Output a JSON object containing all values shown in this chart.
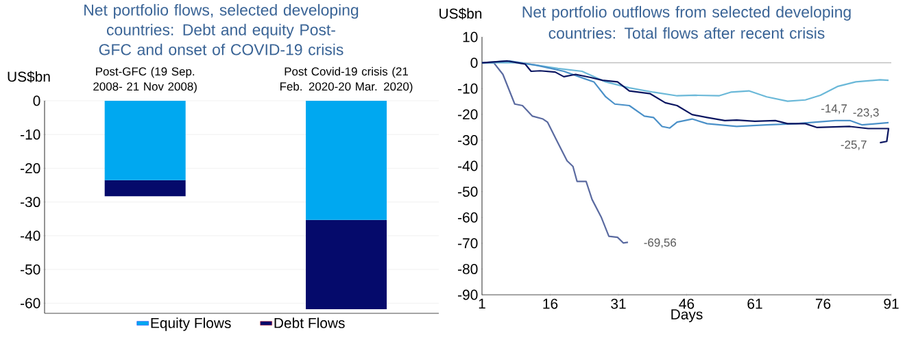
{
  "chart_data": [
    {
      "type": "bar",
      "stacked": true,
      "title": "Net portfolio flows, selected developing countries: Debt and equity Post-GFC and onset of COVID-19 crisis",
      "ylabel": "US$bn",
      "categories": [
        "Post-GFC (19 Sep. 2008- 21 Nov 2008)",
        "Post Covid-19 crisis (21 Feb. 2020-20 Mar. 2020)"
      ],
      "series": [
        {
          "name": "Equity Flows",
          "color": "#00a8f0",
          "values": [
            -23.5,
            -35.3
          ]
        },
        {
          "name": "Debt Flows",
          "color": "#050a6b",
          "values": [
            -4.8,
            -26.5
          ]
        }
      ],
      "ylim": [
        -63,
        0
      ],
      "yticks": [
        -60,
        -50,
        -40,
        -30,
        -20,
        -10,
        0
      ],
      "grid": "y",
      "legend": "bottom"
    },
    {
      "type": "line",
      "title": "Net portfolio outflows from selected developing countries: Total flows after recent crisis",
      "ylabel": "US$bn",
      "xlabel": "Days",
      "series": [
        {
          "color": "#5a6aa0",
          "x": [
            1,
            3.6,
            5.6,
            8.2,
            9.9,
            12.1,
            14.4,
            15.4,
            17.4,
            19.7,
            21,
            21.9,
            23.9,
            25.2,
            27.2,
            28.9,
            30.8,
            32.1,
            33.1
          ],
          "values": [
            0,
            0,
            -4.5,
            -16,
            -16.6,
            -20.7,
            -21.8,
            -23,
            -30,
            -38,
            -40.2,
            -46,
            -46,
            -53,
            -59.8,
            -67.3,
            -67.7,
            -69.9,
            -69.6
          ]
        },
        {
          "color": "#6ab8d8",
          "x": [
            1,
            7.9,
            12.5,
            17.7,
            23,
            28.2,
            33.4,
            38.7,
            43.9,
            47.9,
            53.1,
            55.7,
            59.7,
            63.6,
            68.2,
            72.1,
            75.4,
            79.3,
            83.2,
            88.5,
            90.4
          ],
          "values": [
            0,
            0.1,
            -0.8,
            -2.2,
            -3.3,
            -7.4,
            -9.7,
            -11.4,
            -12.8,
            -12.6,
            -12.8,
            -11.4,
            -10.9,
            -13.2,
            -14.9,
            -14.4,
            -12.6,
            -9.1,
            -7.4,
            -6.6,
            -6.8
          ]
        },
        {
          "color": "#4a90c8",
          "x": [
            1,
            7.2,
            13.1,
            19,
            23.6,
            25.6,
            28.2,
            30.2,
            33.4,
            36.7,
            38.7,
            40.6,
            42.3,
            43.9,
            47.2,
            50.5,
            57,
            63.6,
            70.1,
            78.7,
            81.9,
            84.6,
            90.4
          ],
          "values": [
            0,
            0.7,
            -1,
            -3.3,
            -6.2,
            -7.4,
            -13.2,
            -16,
            -16.6,
            -20.7,
            -21.2,
            -24.7,
            -25.3,
            -23,
            -21.8,
            -23.6,
            -24.7,
            -24.1,
            -23.6,
            -22.4,
            -22.4,
            -24.1,
            -23.2
          ]
        },
        {
          "color": "#0a1560",
          "x": [
            1,
            6.6,
            10.5,
            11.8,
            13.8,
            17.1,
            19,
            21.6,
            24.9,
            27.5,
            30.8,
            33.4,
            38,
            41.3,
            43.9,
            47.2,
            50.5,
            54.4,
            57,
            61,
            65.5,
            68.2,
            72.1,
            74.7,
            81.9,
            85.9,
            90.4,
            90,
            88.5
          ],
          "values": [
            0,
            0.7,
            -0.5,
            -3.3,
            -3.1,
            -3.6,
            -5.4,
            -4.5,
            -5.7,
            -6.8,
            -7.4,
            -10.9,
            -12,
            -15.5,
            -16.6,
            -20.1,
            -21.2,
            -22.4,
            -22.2,
            -22.7,
            -22.4,
            -23.6,
            -23.6,
            -25.1,
            -24.7,
            -25.5,
            -25.5,
            -30.5,
            -31
          ]
        }
      ],
      "xlim": [
        1,
        91
      ],
      "ylim": [
        -90,
        10
      ],
      "xticks": [
        1,
        16,
        31,
        46,
        61,
        76,
        91
      ],
      "yticks": [
        -90,
        -80,
        -70,
        -60,
        -50,
        -40,
        -30,
        -20,
        -10,
        0,
        10
      ],
      "ref_lines": [
        {
          "axis": "y",
          "value": 0,
          "color": "#c0c0c0"
        }
      ],
      "annotations": [
        "-69,56",
        "-14,7",
        "-23,3",
        "-25,7"
      ]
    }
  ]
}
